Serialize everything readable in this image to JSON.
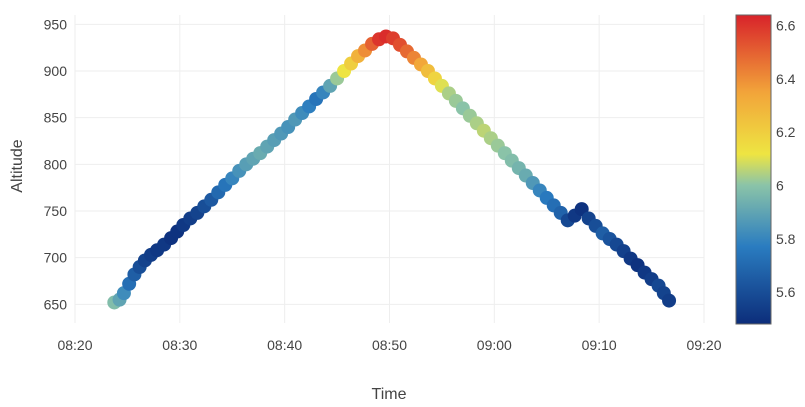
{
  "chart_data": {
    "type": "scatter",
    "title": "",
    "xlabel": "Time",
    "ylabel": "Altitude",
    "x_ticks": [
      "08:20",
      "08:30",
      "08:40",
      "08:50",
      "09:00",
      "09:10",
      "09:20"
    ],
    "x_range": [
      "08:20",
      "09:20"
    ],
    "y_ticks": [
      650,
      700,
      750,
      800,
      850,
      900,
      950
    ],
    "y_range": [
      630,
      960
    ],
    "grid": true,
    "colorbar": {
      "ticks": [
        5.6,
        5.8,
        6,
        6.2,
        6.4,
        6.6
      ],
      "tick_labels": [
        "5.6",
        "5.8",
        "6",
        "6.2",
        "6.4",
        "6.6"
      ],
      "range": [
        5.48,
        6.64
      ],
      "colorscale": [
        [
          0.0,
          "#0c2d7a"
        ],
        [
          0.25,
          "#2a7cc0"
        ],
        [
          0.45,
          "#8bc4a8"
        ],
        [
          0.55,
          "#eee542"
        ],
        [
          0.75,
          "#f2a43a"
        ],
        [
          1.0,
          "#d8232a"
        ]
      ]
    },
    "series": [
      {
        "x": [
          "08:23:45",
          "08:24:15",
          "08:24:40",
          "08:25:10",
          "08:25:40",
          "08:26:10",
          "08:26:40",
          "08:27:15",
          "08:27:50",
          "08:28:30",
          "08:29:10",
          "08:29:45",
          "08:30:20",
          "08:31:00",
          "08:31:40",
          "08:32:20",
          "08:33:00",
          "08:33:40",
          "08:34:20",
          "08:35:00",
          "08:35:40",
          "08:36:20",
          "08:37:00",
          "08:37:40",
          "08:38:20",
          "08:39:00",
          "08:39:40",
          "08:40:20",
          "08:41:00",
          "08:41:40",
          "08:42:20",
          "08:43:00",
          "08:43:40",
          "08:44:20",
          "08:45:00",
          "08:45:40",
          "08:46:20",
          "08:47:00",
          "08:47:40",
          "08:48:20",
          "08:49:00",
          "08:49:40",
          "08:50:20",
          "08:51:00",
          "08:51:40",
          "08:52:20",
          "08:53:00",
          "08:53:40",
          "08:54:20",
          "08:55:00",
          "08:55:40",
          "08:56:20",
          "08:57:00",
          "08:57:40",
          "08:58:20",
          "08:59:00",
          "08:59:40",
          "09:00:20",
          "09:01:00",
          "09:01:40",
          "09:02:20",
          "09:03:00",
          "09:03:40",
          "09:04:20",
          "09:05:00",
          "09:05:40",
          "09:06:20",
          "09:07:00",
          "09:07:40",
          "09:08:20",
          "09:09:00",
          "09:09:40",
          "09:10:20",
          "09:11:00",
          "09:11:40",
          "09:12:20",
          "09:13:00",
          "09:13:40",
          "09:14:20",
          "09:15:00",
          "09:15:40",
          "09:16:10",
          "09:16:40"
        ],
        "y": [
          652,
          655,
          662,
          672,
          682,
          690,
          697,
          703,
          708,
          714,
          721,
          728,
          735,
          742,
          748,
          755,
          762,
          770,
          778,
          785,
          793,
          800,
          806,
          812,
          819,
          826,
          833,
          840,
          848,
          855,
          862,
          870,
          877,
          884,
          892,
          900,
          908,
          916,
          922,
          929,
          934,
          937,
          935,
          928,
          921,
          914,
          907,
          900,
          892,
          884,
          876,
          868,
          860,
          852,
          844,
          836,
          828,
          820,
          812,
          804,
          796,
          788,
          780,
          772,
          764,
          756,
          748,
          740,
          745,
          752,
          742,
          734,
          726,
          720,
          714,
          707,
          699,
          692,
          684,
          677,
          670,
          662,
          654
        ],
        "color_values": [
          5.98,
          5.9,
          5.82,
          5.72,
          5.66,
          5.6,
          5.56,
          5.54,
          5.52,
          5.52,
          5.5,
          5.5,
          5.52,
          5.54,
          5.56,
          5.6,
          5.64,
          5.7,
          5.74,
          5.8,
          5.84,
          5.88,
          5.9,
          5.92,
          5.9,
          5.88,
          5.86,
          5.84,
          5.86,
          5.82,
          5.78,
          5.74,
          5.8,
          5.9,
          6.02,
          6.12,
          6.2,
          6.3,
          6.4,
          6.5,
          6.6,
          6.62,
          6.58,
          6.54,
          6.48,
          6.42,
          6.34,
          6.26,
          6.18,
          6.1,
          6.04,
          6.02,
          6.0,
          6.02,
          6.04,
          6.06,
          6.04,
          6.02,
          6.0,
          5.98,
          5.95,
          5.92,
          5.86,
          5.8,
          5.76,
          5.72,
          5.68,
          5.58,
          5.52,
          5.5,
          5.56,
          5.6,
          5.66,
          5.62,
          5.58,
          5.55,
          5.52,
          5.5,
          5.52,
          5.54,
          5.58,
          5.56,
          5.54
        ]
      }
    ]
  }
}
